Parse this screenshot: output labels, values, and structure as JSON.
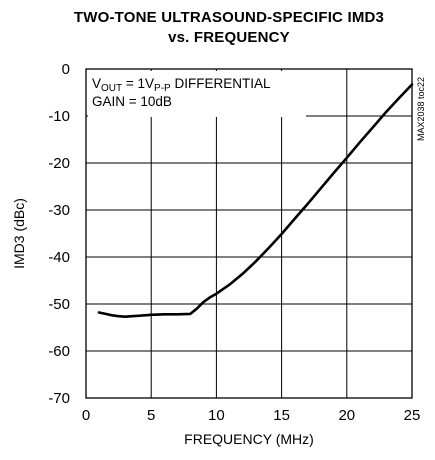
{
  "chart_data": {
    "type": "line",
    "title": "TWO-TONE ULTRASOUND-SPECIFIC IMD3",
    "subtitle": "vs. FREQUENCY",
    "xlabel": "FREQUENCY (MHz)",
    "ylabel": "IMD3 (dBc)",
    "xlim": [
      0,
      25
    ],
    "ylim": [
      -70,
      0
    ],
    "xticks": [
      "0",
      "5",
      "10",
      "15",
      "20",
      "25"
    ],
    "yticks": [
      "0",
      "-10",
      "-20",
      "-30",
      "-40",
      "-50",
      "-60",
      "-70"
    ],
    "grid": true,
    "annotations": {
      "vout_prefix": "V",
      "vout_sub": "OUT",
      "vout_mid": " = 1V",
      "vout_sub2": "P-P",
      "vout_suffix": " DIFFERENTIAL",
      "gain": "GAIN = 10dB",
      "code": "MAX2038 toc22"
    },
    "series": [
      {
        "x": [
          1,
          1.5,
          2,
          2.5,
          3,
          3.5,
          4,
          5,
          6,
          7,
          8,
          8.5,
          9,
          9.5,
          10,
          11,
          12,
          13,
          14,
          15,
          16,
          17,
          18,
          19,
          20,
          21,
          22,
          23,
          24,
          25
        ],
        "y": [
          -51.8,
          -52.1,
          -52.4,
          -52.6,
          -52.7,
          -52.6,
          -52.5,
          -52.3,
          -52.2,
          -52.2,
          -52.1,
          -51.0,
          -49.6,
          -48.6,
          -47.8,
          -45.9,
          -43.6,
          -41.0,
          -38.1,
          -35.1,
          -31.9,
          -28.7,
          -25.4,
          -22.1,
          -18.9,
          -15.6,
          -12.4,
          -9.2,
          -6.2,
          -3.3
        ]
      }
    ]
  }
}
